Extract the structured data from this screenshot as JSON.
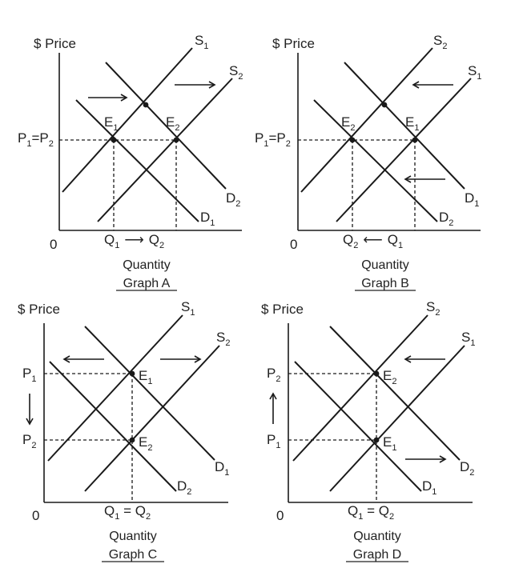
{
  "axis": {
    "price": "$ Price",
    "origin": "0",
    "quantity": "Quantity"
  },
  "graphs": {
    "a": {
      "title": "Graph A",
      "s_old": "S",
      "s_old_sub": "1",
      "s_new": "S",
      "s_new_sub": "2",
      "d_old": "D",
      "d_old_sub": "1",
      "d_new": "D",
      "d_new_sub": "2",
      "e1": "E",
      "e1_sub": "1",
      "e2": "E",
      "e2_sub": "2",
      "p": "P",
      "p_sub1": "1",
      "p_eq": "=P",
      "p_sub2": "2",
      "q1": "Q",
      "q1_sub": "1",
      "q_arrow": "⟶",
      "q2": "Q",
      "q2_sub": "2"
    },
    "b": {
      "title": "Graph B",
      "s_a": "S",
      "s_a_sub": "2",
      "s_b": "S",
      "s_b_sub": "1",
      "d_a": "D",
      "d_a_sub": "2",
      "d_b": "D",
      "d_b_sub": "1",
      "e2": "E",
      "e2_sub": "2",
      "e1": "E",
      "e1_sub": "1",
      "p": "P",
      "p_sub1": "1",
      "p_eq": "=P",
      "p_sub2": "2",
      "q2": "Q",
      "q2_sub": "2",
      "q_arrow": "⟵",
      "q1": "Q",
      "q1_sub": "1"
    },
    "c": {
      "title": "Graph C",
      "s_a": "S",
      "s_a_sub": "1",
      "s_b": "S",
      "s_b_sub": "2",
      "d_a": "D",
      "d_a_sub": "1",
      "d_b": "D",
      "d_b_sub": "2",
      "e1": "E",
      "e1_sub": "1",
      "e2": "E",
      "e2_sub": "2",
      "p1": "P",
      "p1_sub": "1",
      "p2": "P",
      "p2_sub": "2",
      "q": "Q",
      "q_sub1": "1",
      "q_eq": " = Q",
      "q_sub2": "2"
    },
    "d": {
      "title": "Graph D",
      "s_a": "S",
      "s_a_sub": "2",
      "s_b": "S",
      "s_b_sub": "1",
      "d_a": "D",
      "d_a_sub": "2",
      "d_b": "D",
      "d_b_sub": "1",
      "e2": "E",
      "e2_sub": "2",
      "e1": "E",
      "e1_sub": "1",
      "p2": "P",
      "p2_sub": "2",
      "p1": "P",
      "p1_sub": "1",
      "q": "Q",
      "q_sub1": "1",
      "q_eq": " = Q",
      "q_sub2": "2"
    }
  },
  "colors": {
    "ink": "#1a1a1a",
    "text": "#222222",
    "background": "#ffffff"
  }
}
